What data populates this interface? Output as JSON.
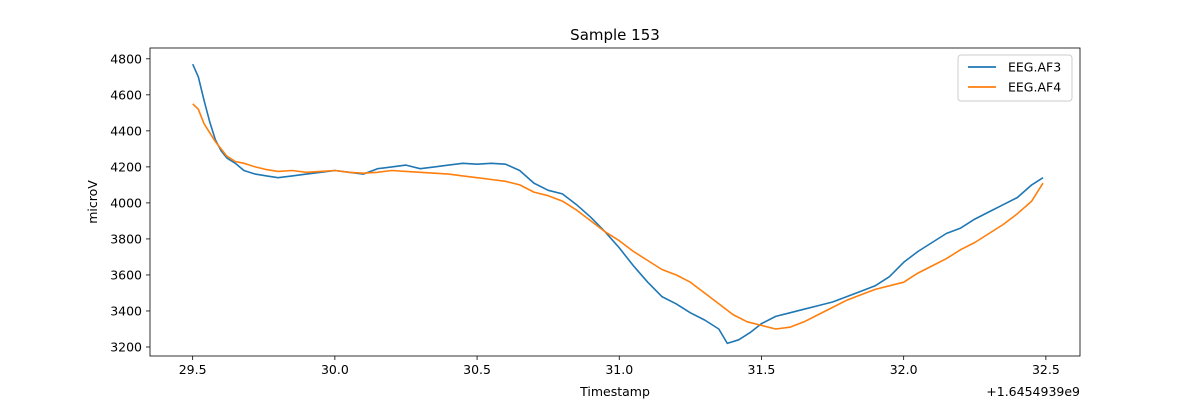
{
  "chart_data": {
    "type": "line",
    "title": "Sample 153",
    "xlabel": "Timestamp",
    "ylabel": "microV",
    "x_offset_label": "+1.6454939e9",
    "xlim": [
      29.35,
      32.62
    ],
    "ylim": [
      3150,
      4860
    ],
    "x_ticks": [
      29.5,
      30.0,
      30.5,
      31.0,
      31.5,
      32.0,
      32.5
    ],
    "x_tick_labels": [
      "29.5",
      "30.0",
      "30.5",
      "31.0",
      "31.5",
      "32.0",
      "32.5"
    ],
    "y_ticks": [
      3200,
      3400,
      3600,
      3800,
      4000,
      4200,
      4400,
      4600,
      4800
    ],
    "y_tick_labels": [
      "3200",
      "3400",
      "3600",
      "3800",
      "4000",
      "4200",
      "4400",
      "4600",
      "4800"
    ],
    "grid": false,
    "legend_position": "top-right",
    "series": [
      {
        "name": "EEG.AF3",
        "color": "#1f77b4",
        "x": [
          29.5,
          29.52,
          29.54,
          29.56,
          29.58,
          29.6,
          29.62,
          29.65,
          29.68,
          29.72,
          29.76,
          29.8,
          29.85,
          29.9,
          29.95,
          30.0,
          30.05,
          30.1,
          30.15,
          30.2,
          30.25,
          30.3,
          30.35,
          30.4,
          30.45,
          30.5,
          30.55,
          30.6,
          30.65,
          30.7,
          30.75,
          30.8,
          30.85,
          30.9,
          30.95,
          31.0,
          31.05,
          31.1,
          31.15,
          31.2,
          31.25,
          31.3,
          31.35,
          31.38,
          31.42,
          31.46,
          31.5,
          31.55,
          31.6,
          31.65,
          31.7,
          31.75,
          31.8,
          31.85,
          31.9,
          31.95,
          32.0,
          32.05,
          32.1,
          32.15,
          32.2,
          32.25,
          32.3,
          32.35,
          32.4,
          32.45,
          32.49
        ],
        "y": [
          4770,
          4700,
          4570,
          4450,
          4350,
          4290,
          4250,
          4220,
          4180,
          4160,
          4150,
          4140,
          4150,
          4160,
          4170,
          4180,
          4170,
          4160,
          4190,
          4200,
          4210,
          4190,
          4200,
          4210,
          4220,
          4215,
          4220,
          4215,
          4180,
          4110,
          4070,
          4050,
          3990,
          3920,
          3840,
          3750,
          3650,
          3560,
          3480,
          3440,
          3390,
          3350,
          3300,
          3220,
          3240,
          3280,
          3330,
          3370,
          3390,
          3410,
          3430,
          3450,
          3480,
          3510,
          3540,
          3590,
          3670,
          3730,
          3780,
          3830,
          3860,
          3910,
          3950,
          3990,
          4030,
          4100,
          4140
        ]
      },
      {
        "name": "EEG.AF4",
        "color": "#ff7f0e",
        "x": [
          29.5,
          29.52,
          29.54,
          29.56,
          29.58,
          29.6,
          29.62,
          29.65,
          29.68,
          29.72,
          29.76,
          29.8,
          29.85,
          29.9,
          29.95,
          30.0,
          30.05,
          30.1,
          30.15,
          30.2,
          30.25,
          30.3,
          30.35,
          30.4,
          30.45,
          30.5,
          30.55,
          30.6,
          30.65,
          30.7,
          30.75,
          30.8,
          30.85,
          30.9,
          30.95,
          31.0,
          31.05,
          31.1,
          31.15,
          31.2,
          31.25,
          31.3,
          31.35,
          31.4,
          31.45,
          31.5,
          31.55,
          31.6,
          31.65,
          31.7,
          31.75,
          31.8,
          31.85,
          31.9,
          31.95,
          32.0,
          32.05,
          32.1,
          32.15,
          32.2,
          32.25,
          32.3,
          32.35,
          32.4,
          32.45,
          32.49
        ],
        "y": [
          4550,
          4520,
          4440,
          4390,
          4340,
          4300,
          4260,
          4230,
          4220,
          4200,
          4185,
          4175,
          4180,
          4170,
          4175,
          4180,
          4170,
          4165,
          4170,
          4180,
          4175,
          4170,
          4165,
          4160,
          4150,
          4140,
          4130,
          4120,
          4100,
          4060,
          4040,
          4010,
          3960,
          3900,
          3840,
          3790,
          3730,
          3680,
          3630,
          3600,
          3560,
          3500,
          3440,
          3380,
          3340,
          3320,
          3300,
          3310,
          3340,
          3380,
          3420,
          3460,
          3490,
          3520,
          3540,
          3560,
          3610,
          3650,
          3690,
          3740,
          3780,
          3830,
          3880,
          3940,
          4010,
          4110
        ]
      }
    ]
  }
}
